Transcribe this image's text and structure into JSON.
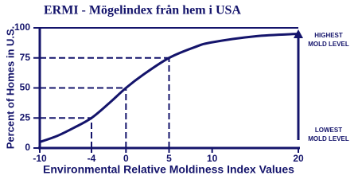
{
  "chart_data": {
    "type": "line",
    "title": "ERMI - Mögelindex från hem i USA",
    "xlabel": "Environmental Relative Moldiness Index Values",
    "ylabel": "Percent of Homes in U.S.",
    "x": [
      -10,
      -8,
      -6,
      -4,
      -2,
      0,
      2,
      5,
      8,
      10,
      15,
      20
    ],
    "series": [
      {
        "color": "#14146b",
        "values": [
          5,
          10,
          17,
          25,
          37,
          50,
          61,
          75,
          84,
          88,
          93,
          95
        ]
      }
    ],
    "xlim": [
      -10,
      20
    ],
    "xticks": [
      -10,
      -4,
      0,
      5,
      10,
      20
    ],
    "ylim": [
      0,
      100
    ],
    "yticks": [
      0,
      25,
      50,
      75,
      100
    ],
    "guides": [
      {
        "x": -4,
        "y": 25
      },
      {
        "x": 0,
        "y": 50
      },
      {
        "x": 5,
        "y": 75
      }
    ],
    "annotations": [
      {
        "lines": [
          "HIGHEST",
          "MOLD LEVEL"
        ],
        "y": 100
      },
      {
        "lines": [
          "LOWEST",
          "MOLD LEVEL"
        ],
        "y": 0
      }
    ]
  }
}
